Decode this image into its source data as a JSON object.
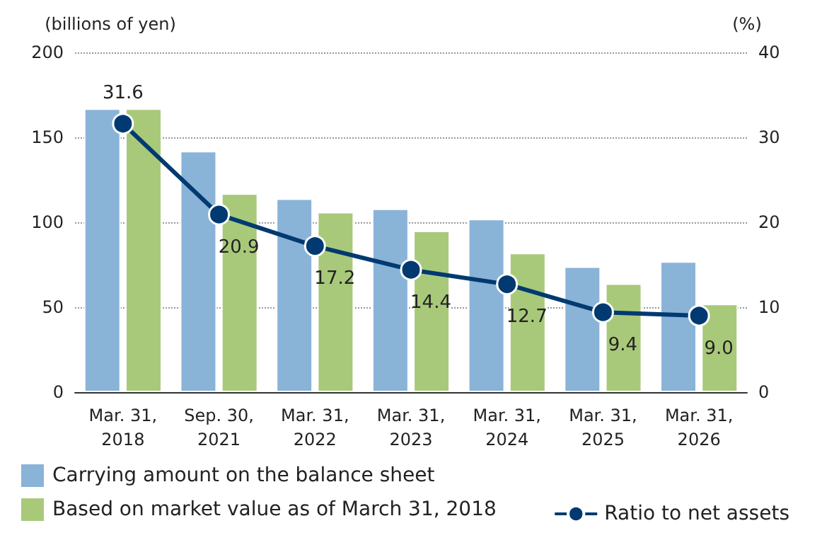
{
  "chart_data": {
    "type": "bar",
    "ylabel": "(billions of yen)",
    "y2label": "(%)",
    "categories": [
      "Mar. 31,\n2018",
      "Sep. 30,\n2021",
      "Mar. 31,\n2022",
      "Mar. 31,\n2023",
      "Mar. 31,\n2024",
      "Mar. 31,\n2025",
      "Mar. 31,\n2026"
    ],
    "series": [
      {
        "name": "Carrying amount on the balance sheet",
        "color": "#8ab3d8",
        "values": [
          167,
          142,
          114,
          108,
          102,
          74,
          77
        ]
      },
      {
        "name": "Based on market value as of March 31, 2018",
        "color": "#a9c97a",
        "values": [
          167,
          117,
          106,
          95,
          82,
          64,
          52
        ]
      },
      {
        "name": "Ratio to net assets",
        "type": "line",
        "axis": "y2",
        "color": "#003a70",
        "values": [
          31.6,
          20.9,
          17.2,
          14.4,
          12.7,
          9.4,
          9.0
        ],
        "value_labels": [
          "31.6",
          "20.9",
          "17.2",
          "14.4",
          "12.7",
          "9.4",
          "9.0"
        ]
      }
    ],
    "ylim": [
      0,
      200
    ],
    "yticks": [
      0,
      50,
      100,
      150,
      200
    ],
    "y2lim": [
      0,
      40
    ],
    "y2ticks": [
      0,
      10,
      20,
      30,
      40
    ],
    "grid": "y",
    "legend": "bottom",
    "marker": "circle",
    "line_style": "solid"
  }
}
